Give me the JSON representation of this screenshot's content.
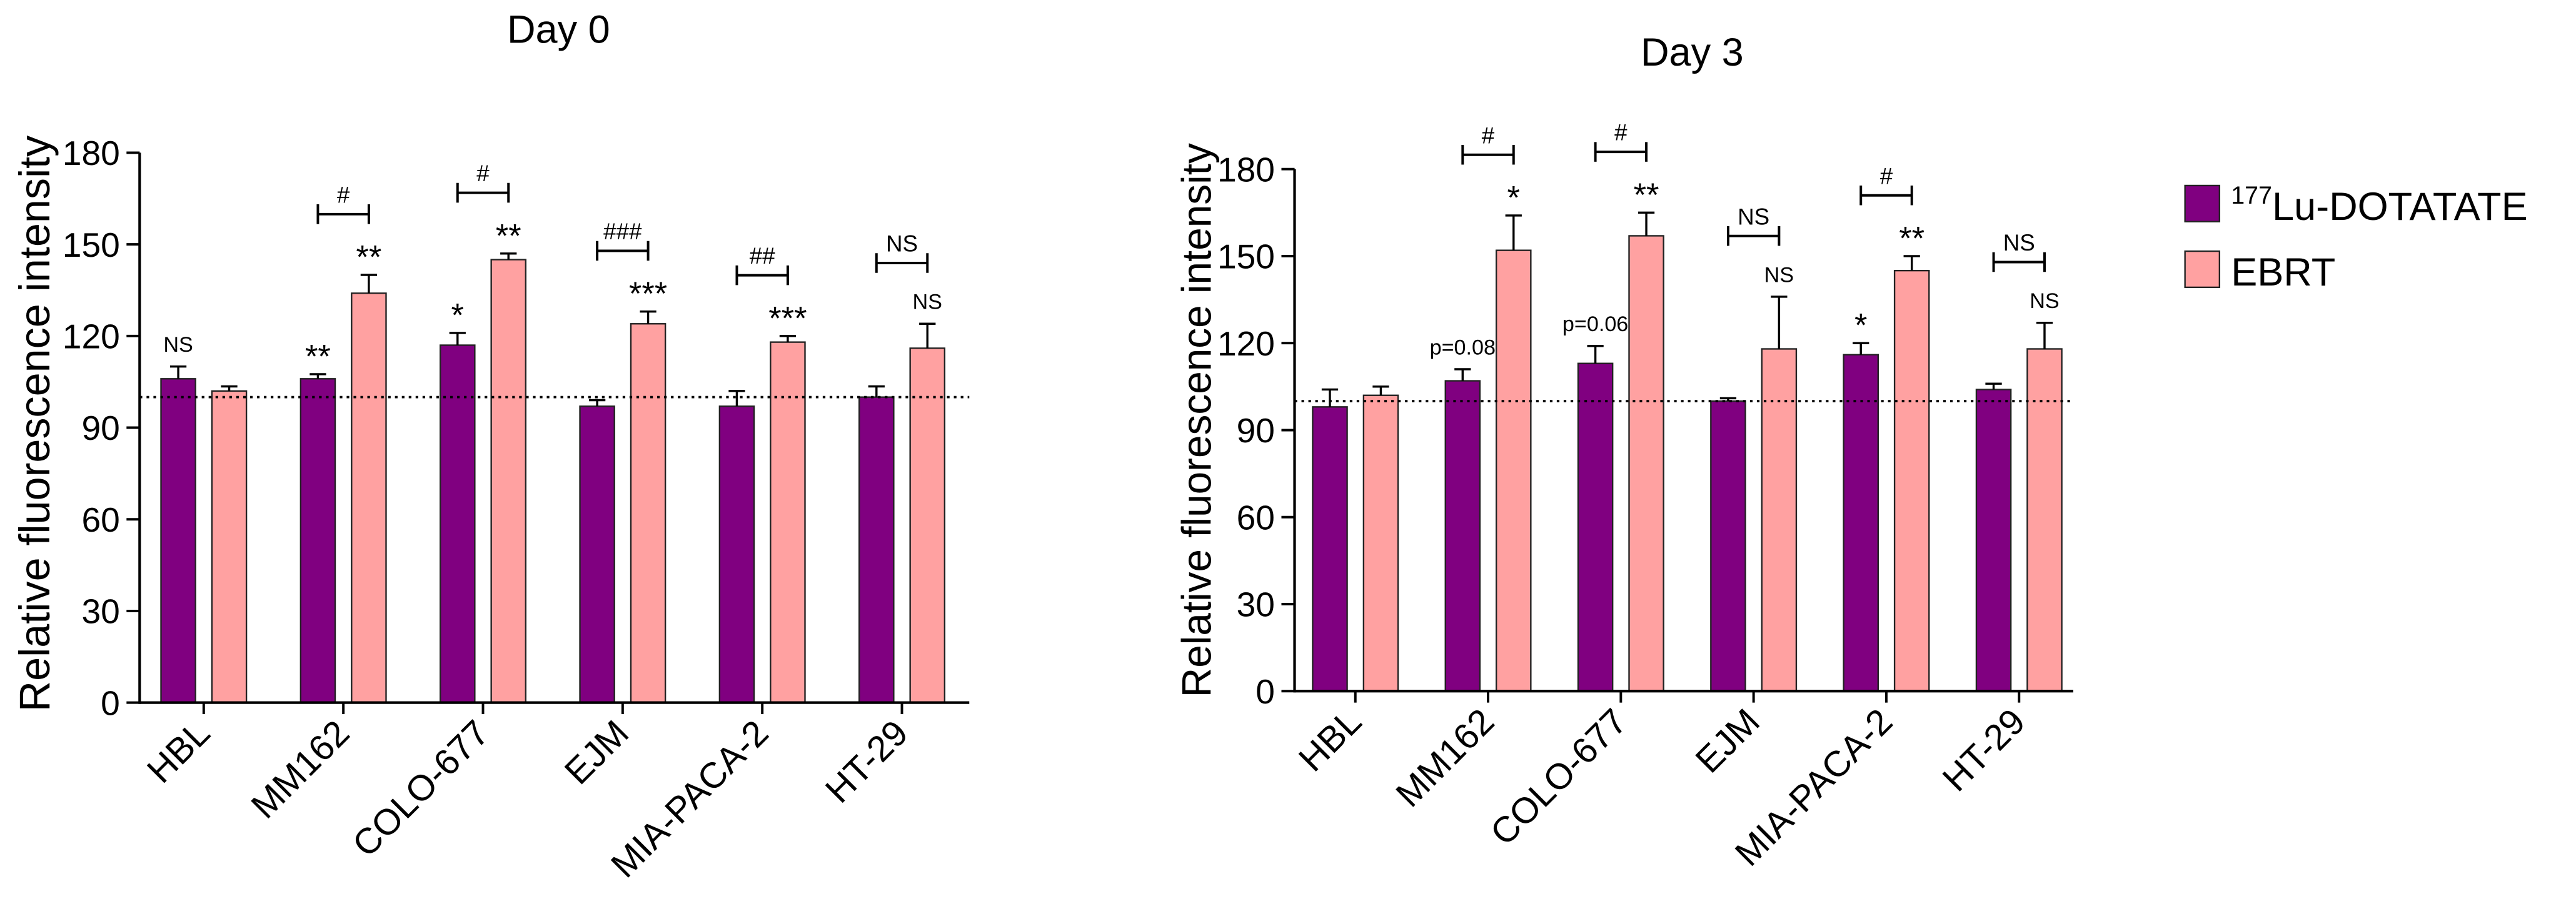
{
  "chart_data": [
    {
      "type": "bar",
      "title": "Day 0",
      "ylabel": "Relative fluorescence intensity",
      "categories": [
        "HBL",
        "MM162",
        "COLO-677",
        "EJM",
        "MIA-PACA-2",
        "HT-29"
      ],
      "ylim": [
        0,
        180
      ],
      "yticks": [
        0,
        30,
        60,
        90,
        120,
        150,
        180
      ],
      "reference_line": 100,
      "legend": "right",
      "series": [
        {
          "name": "177Lu-DOTATATE",
          "name_superscript": "177",
          "color": "#800080",
          "values": [
            106,
            106,
            117,
            97,
            97,
            100
          ],
          "errors": [
            4,
            1.5,
            4,
            2,
            5,
            3.5
          ]
        },
        {
          "name": "EBRT",
          "color": "#FFA1A1",
          "values": [
            102,
            134,
            145,
            124,
            118,
            116
          ],
          "errors": [
            1.5,
            6,
            2,
            4,
            2,
            8
          ]
        }
      ],
      "annotations": {
        "bar_labels": [
          {
            "category_index": 0,
            "series_index": 0,
            "text": "NS"
          },
          {
            "category_index": 1,
            "series_index": 0,
            "text": "**"
          },
          {
            "category_index": 1,
            "series_index": 1,
            "text": "**"
          },
          {
            "category_index": 2,
            "series_index": 0,
            "text": "*"
          },
          {
            "category_index": 2,
            "series_index": 1,
            "text": "**"
          },
          {
            "category_index": 3,
            "series_index": 1,
            "text": "***"
          },
          {
            "category_index": 4,
            "series_index": 1,
            "text": "***"
          },
          {
            "category_index": 5,
            "series_index": 1,
            "text": "NS"
          }
        ],
        "brackets": [
          {
            "category_index": 1,
            "text": "#"
          },
          {
            "category_index": 2,
            "text": "#"
          },
          {
            "category_index": 3,
            "text": "###"
          },
          {
            "category_index": 4,
            "text": "##"
          },
          {
            "category_index": 5,
            "text": "NS"
          }
        ]
      }
    },
    {
      "type": "bar",
      "title": "Day 3",
      "ylabel": "Relative fluorescence intensity",
      "categories": [
        "HBL",
        "MM162",
        "COLO-677",
        "EJM",
        "MIA-PACA-2",
        "HT-29"
      ],
      "ylim": [
        0,
        180
      ],
      "yticks": [
        0,
        30,
        60,
        90,
        120,
        150,
        180
      ],
      "reference_line": 100,
      "legend": "right",
      "series": [
        {
          "name": "177Lu-DOTATATE",
          "name_superscript": "177",
          "color": "#800080",
          "values": [
            98,
            107,
            113,
            100,
            116,
            104
          ],
          "errors": [
            6,
            4,
            6,
            1,
            4,
            2
          ]
        },
        {
          "name": "EBRT",
          "color": "#FFA1A1",
          "values": [
            102,
            152,
            157,
            118,
            145,
            118
          ],
          "errors": [
            3,
            12,
            8,
            18,
            5,
            9
          ]
        }
      ],
      "annotations": {
        "bar_labels": [
          {
            "category_index": 1,
            "series_index": 0,
            "text": "p=0.08"
          },
          {
            "category_index": 1,
            "series_index": 1,
            "text": "*"
          },
          {
            "category_index": 2,
            "series_index": 0,
            "text": "p=0.06"
          },
          {
            "category_index": 2,
            "series_index": 1,
            "text": "**"
          },
          {
            "category_index": 3,
            "series_index": 1,
            "text": "NS"
          },
          {
            "category_index": 4,
            "series_index": 0,
            "text": "*"
          },
          {
            "category_index": 4,
            "series_index": 1,
            "text": "**"
          },
          {
            "category_index": 5,
            "series_index": 1,
            "text": "NS"
          }
        ],
        "brackets": [
          {
            "category_index": 1,
            "text": "#"
          },
          {
            "category_index": 2,
            "text": "#"
          },
          {
            "category_index": 3,
            "text": "NS"
          },
          {
            "category_index": 4,
            "text": "#"
          },
          {
            "category_index": 5,
            "text": "NS"
          }
        ]
      }
    }
  ]
}
